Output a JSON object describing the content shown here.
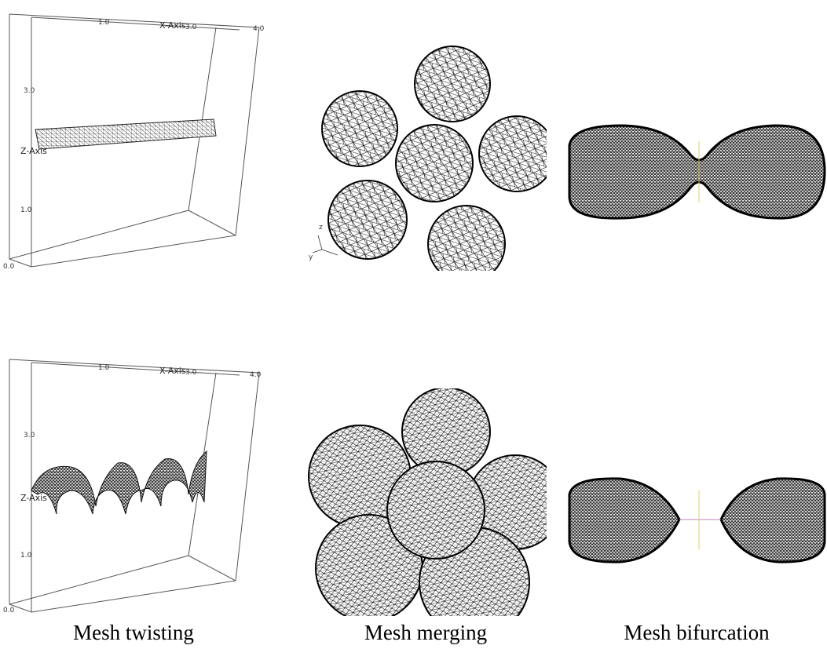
{
  "figure": {
    "captions": [
      "Mesh twisting",
      "Mesh merging",
      "Mesh bifurcation"
    ],
    "plot_labels": {
      "x_axis": "X-Axis",
      "z_axis": "Z-Axis",
      "top_ticks": [
        "1.0",
        "3.0",
        "4.0"
      ],
      "left_ticks": [
        "3.0",
        "1.0",
        "0.0"
      ],
      "gizmo": [
        "z",
        "y"
      ]
    }
  }
}
